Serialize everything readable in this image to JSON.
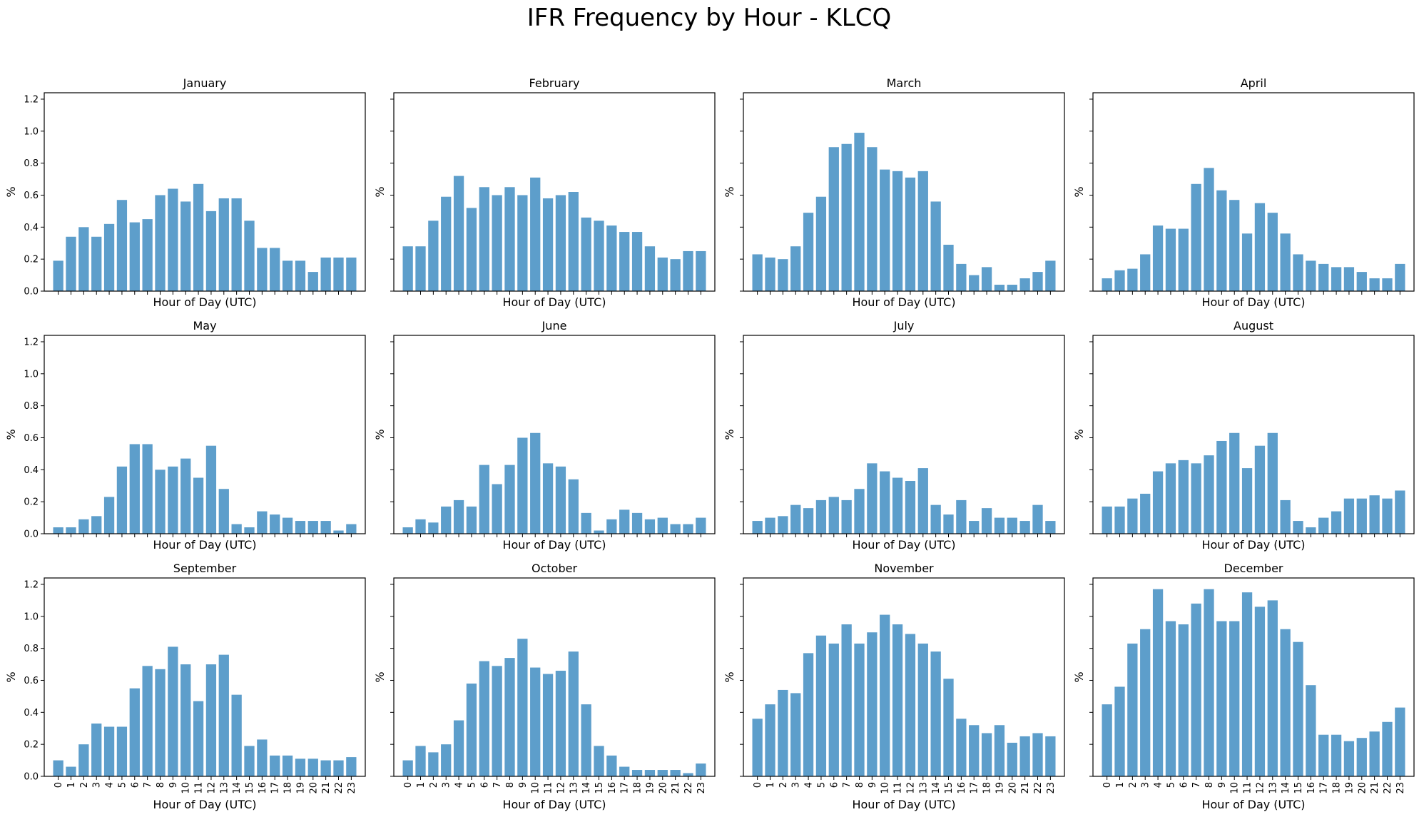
{
  "chart_data": {
    "type": "bar",
    "title": "IFR Frequency by Hour - KLCQ",
    "xlabel": "Hour of Day (UTC)",
    "ylabel": "%",
    "ylim": [
      0,
      1.24
    ],
    "yticks": [
      "0.0",
      "0.2",
      "0.4",
      "0.6",
      "0.8",
      "1.0",
      "1.2"
    ],
    "categories": [
      "0",
      "1",
      "2",
      "3",
      "4",
      "5",
      "6",
      "7",
      "8",
      "9",
      "10",
      "11",
      "12",
      "13",
      "14",
      "15",
      "16",
      "17",
      "18",
      "19",
      "20",
      "21",
      "22",
      "23"
    ],
    "grid": false,
    "bar_color": "#5d9ecb",
    "panels": [
      {
        "name": "January",
        "values": [
          0.19,
          0.34,
          0.4,
          0.34,
          0.42,
          0.57,
          0.43,
          0.45,
          0.6,
          0.64,
          0.56,
          0.67,
          0.5,
          0.58,
          0.58,
          0.44,
          0.27,
          0.27,
          0.19,
          0.19,
          0.12,
          0.21,
          0.21,
          0.21
        ]
      },
      {
        "name": "February",
        "values": [
          0.28,
          0.28,
          0.44,
          0.59,
          0.72,
          0.52,
          0.65,
          0.6,
          0.65,
          0.6,
          0.71,
          0.58,
          0.6,
          0.62,
          0.46,
          0.44,
          0.41,
          0.37,
          0.37,
          0.28,
          0.21,
          0.2,
          0.25,
          0.25
        ]
      },
      {
        "name": "March",
        "values": [
          0.23,
          0.21,
          0.2,
          0.28,
          0.49,
          0.59,
          0.9,
          0.92,
          0.99,
          0.9,
          0.76,
          0.75,
          0.71,
          0.75,
          0.56,
          0.29,
          0.17,
          0.1,
          0.15,
          0.04,
          0.04,
          0.08,
          0.12,
          0.19
        ]
      },
      {
        "name": "April",
        "values": [
          0.08,
          0.13,
          0.14,
          0.23,
          0.41,
          0.39,
          0.39,
          0.67,
          0.77,
          0.63,
          0.57,
          0.36,
          0.55,
          0.49,
          0.36,
          0.23,
          0.19,
          0.17,
          0.15,
          0.15,
          0.12,
          0.08,
          0.08,
          0.17
        ]
      },
      {
        "name": "May",
        "values": [
          0.04,
          0.04,
          0.09,
          0.11,
          0.23,
          0.42,
          0.56,
          0.56,
          0.4,
          0.42,
          0.47,
          0.35,
          0.55,
          0.28,
          0.06,
          0.04,
          0.14,
          0.12,
          0.1,
          0.08,
          0.08,
          0.08,
          0.02,
          0.06
        ]
      },
      {
        "name": "June",
        "values": [
          0.04,
          0.09,
          0.07,
          0.17,
          0.21,
          0.17,
          0.43,
          0.31,
          0.43,
          0.6,
          0.63,
          0.44,
          0.42,
          0.34,
          0.13,
          0.02,
          0.09,
          0.15,
          0.13,
          0.09,
          0.1,
          0.06,
          0.06,
          0.1
        ]
      },
      {
        "name": "July",
        "values": [
          0.08,
          0.1,
          0.11,
          0.18,
          0.16,
          0.21,
          0.23,
          0.21,
          0.28,
          0.44,
          0.39,
          0.35,
          0.33,
          0.41,
          0.18,
          0.12,
          0.21,
          0.08,
          0.16,
          0.1,
          0.1,
          0.08,
          0.18,
          0.08
        ]
      },
      {
        "name": "August",
        "values": [
          0.17,
          0.17,
          0.22,
          0.25,
          0.39,
          0.44,
          0.46,
          0.44,
          0.49,
          0.58,
          0.63,
          0.41,
          0.55,
          0.63,
          0.21,
          0.08,
          0.04,
          0.1,
          0.14,
          0.22,
          0.22,
          0.24,
          0.22,
          0.27
        ]
      },
      {
        "name": "September",
        "values": [
          0.1,
          0.06,
          0.2,
          0.33,
          0.31,
          0.31,
          0.55,
          0.69,
          0.67,
          0.81,
          0.7,
          0.47,
          0.7,
          0.76,
          0.51,
          0.19,
          0.23,
          0.13,
          0.13,
          0.11,
          0.11,
          0.1,
          0.1,
          0.12
        ]
      },
      {
        "name": "October",
        "values": [
          0.1,
          0.19,
          0.15,
          0.2,
          0.35,
          0.58,
          0.72,
          0.69,
          0.74,
          0.86,
          0.68,
          0.64,
          0.66,
          0.78,
          0.45,
          0.19,
          0.13,
          0.06,
          0.04,
          0.04,
          0.04,
          0.04,
          0.02,
          0.08
        ]
      },
      {
        "name": "November",
        "values": [
          0.36,
          0.45,
          0.54,
          0.52,
          0.77,
          0.88,
          0.83,
          0.95,
          0.83,
          0.9,
          1.01,
          0.95,
          0.89,
          0.83,
          0.78,
          0.61,
          0.36,
          0.32,
          0.27,
          0.32,
          0.21,
          0.25,
          0.27,
          0.25
        ]
      },
      {
        "name": "December",
        "values": [
          0.45,
          0.56,
          0.83,
          0.92,
          1.17,
          0.97,
          0.95,
          1.08,
          1.17,
          0.97,
          0.97,
          1.15,
          1.06,
          1.1,
          0.92,
          0.84,
          0.57,
          0.26,
          0.26,
          0.22,
          0.24,
          0.28,
          0.34,
          0.43
        ]
      }
    ]
  }
}
